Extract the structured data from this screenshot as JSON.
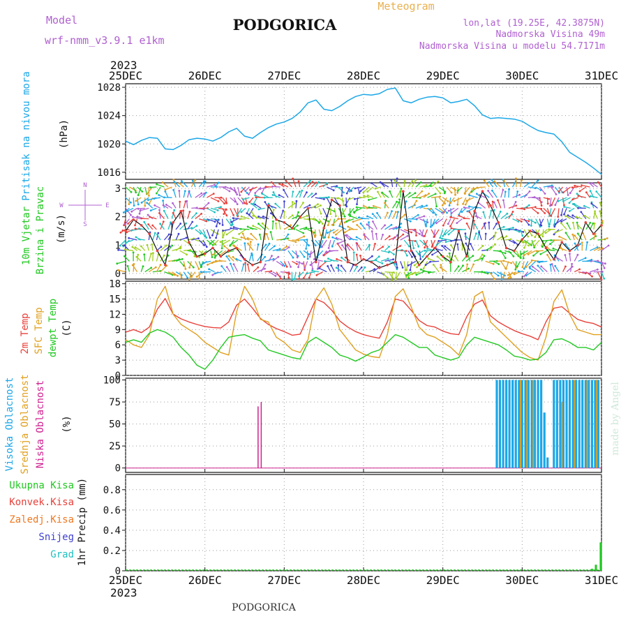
{
  "header": {
    "model_label": "Model",
    "model_name": "wrf-nmm_v3.9.1 e1km",
    "city": "PODGORICA",
    "meteogram": "Meteogram",
    "coords": "lon,lat (19.25E, 42.3875N)",
    "elevation": "Nadmorska Visina 49m",
    "model_elevation": "Nadmorska Visina u modelu 54.7171m",
    "year": "2023",
    "footer_city": "PODGORICA",
    "watermark": "made by Angel"
  },
  "colors": {
    "pressure": "#1ba7e8",
    "temp2m": "#e8403a",
    "sfc_temp": "#e0a020",
    "dewpoint": "#22c822",
    "model_purple": "#b060d0",
    "wind_green": "#22c822",
    "cloud_high": "#1ba7e8",
    "cloud_mid": "#e0a020",
    "cloud_low": "#d02090",
    "total_precip": "#22c822",
    "conv_precip": "#e8403a",
    "frz_precip": "#f07820",
    "snow": "#4040d0",
    "hail": "#20c0c0"
  },
  "chart_data": [
    {
      "type": "line",
      "panel": "pressure",
      "labels": [
        "Pritisak na nivou mora",
        "(hPa)"
      ],
      "x_ticks": [
        "25DEC",
        "26DEC",
        "27DEC",
        "28DEC",
        "29DEC",
        "30DEC",
        "31DEC"
      ],
      "ylim": [
        1015,
        1028.5
      ],
      "y_ticks": [
        1016,
        1020,
        1024,
        1028
      ],
      "x": [
        0,
        0.1,
        0.2,
        0.3,
        0.4,
        0.5,
        0.6,
        0.7,
        0.8,
        0.9,
        1.0,
        1.1,
        1.2,
        1.3,
        1.4,
        1.5,
        1.6,
        1.7,
        1.8,
        1.9,
        2.0,
        2.1,
        2.2,
        2.3,
        2.4,
        2.5,
        2.6,
        2.7,
        2.8,
        2.9,
        3.0,
        3.1,
        3.2,
        3.3,
        3.4,
        3.5,
        3.6,
        3.7,
        3.8,
        3.9,
        4.0,
        4.1,
        4.2,
        4.3,
        4.4,
        4.5,
        4.6,
        4.7,
        4.8,
        4.9,
        5.0,
        5.1,
        5.2,
        5.3,
        5.4,
        5.5,
        5.6,
        5.7,
        5.8,
        5.9,
        6.0
      ],
      "series": [
        {
          "key": "pressure",
          "values": [
            1020.4,
            1019.9,
            1020.5,
            1020.9,
            1020.8,
            1019.3,
            1019.2,
            1019.8,
            1020.6,
            1020.8,
            1020.7,
            1020.4,
            1020.9,
            1021.7,
            1022.2,
            1021.1,
            1020.8,
            1021.6,
            1022.3,
            1022.8,
            1023.1,
            1023.6,
            1024.5,
            1025.8,
            1026.2,
            1024.9,
            1024.7,
            1025.3,
            1026.1,
            1026.7,
            1027.0,
            1026.9,
            1027.1,
            1027.7,
            1027.9,
            1026.1,
            1025.8,
            1026.3,
            1026.6,
            1026.7,
            1026.5,
            1025.8,
            1026.0,
            1026.3,
            1025.4,
            1024.1,
            1023.6,
            1023.7,
            1023.6,
            1023.5,
            1023.2,
            1022.5,
            1021.9,
            1021.6,
            1021.4,
            1020.3,
            1018.8,
            1018.1,
            1017.4,
            1016.6,
            1015.7
          ]
        }
      ]
    },
    {
      "type": "scatter",
      "panel": "wind",
      "labels": [
        "10m Vjetar",
        "Brzina i Pravac",
        "(m/s)"
      ],
      "compass": {
        "n": "N",
        "s": "S",
        "w": "W",
        "e": "E"
      },
      "ylim": [
        -0.2,
        3.2
      ],
      "y_ticks": [
        0,
        1,
        2,
        3
      ],
      "x": [
        0,
        0.1,
        0.2,
        0.3,
        0.4,
        0.5,
        0.6,
        0.7,
        0.8,
        0.9,
        1.0,
        1.1,
        1.2,
        1.3,
        1.4,
        1.5,
        1.6,
        1.7,
        1.8,
        1.9,
        2.0,
        2.1,
        2.2,
        2.3,
        2.4,
        2.5,
        2.6,
        2.7,
        2.8,
        2.9,
        3.0,
        3.1,
        3.2,
        3.3,
        3.4,
        3.5,
        3.6,
        3.7,
        3.8,
        3.9,
        4.0,
        4.1,
        4.2,
        4.3,
        4.4,
        4.5,
        4.6,
        4.7,
        4.8,
        4.9,
        5.0,
        5.1,
        5.2,
        5.3,
        5.4,
        5.5,
        5.6,
        5.7,
        5.8,
        5.9,
        6.0
      ],
      "series": [
        {
          "key": "wind_speed",
          "values": [
            1.5,
            1.9,
            1.7,
            1.4,
            0.8,
            0.3,
            1.8,
            2.2,
            1.1,
            0.6,
            0.7,
            0.9,
            0.6,
            0.8,
            0.9,
            0.5,
            0.3,
            0.4,
            2.4,
            1.9,
            1.8,
            1.6,
            2.0,
            2.3,
            0.4,
            1.6,
            2.6,
            2.4,
            0.4,
            0.3,
            0.5,
            0.4,
            0.2,
            0.3,
            0.4,
            2.9,
            0.8,
            0.3,
            0.6,
            0.9,
            0.6,
            0.4,
            1.5,
            0.6,
            2.2,
            2.9,
            2.4,
            1.8,
            0.9,
            0.8,
            1.2,
            1.5,
            1.4,
            0.9,
            0.5,
            1.1,
            0.8,
            1.0,
            1.8,
            1.4,
            1.7
          ]
        }
      ]
    },
    {
      "type": "line",
      "panel": "temperature",
      "labels": [
        "2m Temp",
        "SFC Temp",
        "dewpt Temp",
        "(C)"
      ],
      "ylim": [
        0,
        18.5
      ],
      "y_ticks": [
        0,
        3,
        6,
        9,
        12,
        15,
        18
      ],
      "x": [
        0,
        0.1,
        0.2,
        0.3,
        0.4,
        0.5,
        0.6,
        0.7,
        0.8,
        0.9,
        1.0,
        1.1,
        1.2,
        1.3,
        1.4,
        1.5,
        1.6,
        1.7,
        1.8,
        1.9,
        2.0,
        2.1,
        2.2,
        2.3,
        2.4,
        2.5,
        2.6,
        2.7,
        2.8,
        2.9,
        3.0,
        3.1,
        3.2,
        3.3,
        3.4,
        3.5,
        3.6,
        3.7,
        3.8,
        3.9,
        4.0,
        4.1,
        4.2,
        4.3,
        4.4,
        4.5,
        4.6,
        4.7,
        4.8,
        4.9,
        5.0,
        5.1,
        5.2,
        5.3,
        5.4,
        5.5,
        5.6,
        5.7,
        5.8,
        5.9,
        6.0
      ],
      "series": [
        {
          "key": "temp2m",
          "name": "2m Temp",
          "values": [
            8.5,
            9.0,
            8.4,
            9.5,
            13.0,
            15.1,
            12.0,
            11.1,
            10.5,
            10.0,
            9.6,
            9.4,
            9.3,
            10.5,
            13.8,
            15.0,
            13.2,
            11.2,
            10.0,
            9.2,
            8.6,
            7.9,
            8.1,
            11.5,
            15.0,
            14.3,
            12.8,
            10.7,
            9.5,
            8.6,
            8.0,
            7.6,
            7.3,
            10.5,
            15.0,
            14.6,
            12.8,
            10.8,
            9.8,
            9.5,
            8.7,
            8.2,
            8.0,
            11.5,
            14.0,
            14.8,
            11.7,
            10.5,
            9.6,
            8.8,
            8.2,
            7.7,
            7.0,
            10.5,
            13.2,
            13.5,
            12.2,
            11.0,
            10.5,
            10.2,
            9.5
          ]
        },
        {
          "key": "sfc_temp",
          "name": "SFC Temp",
          "values": [
            7.0,
            6.0,
            5.5,
            8.0,
            15.0,
            17.5,
            12.0,
            10.0,
            9.0,
            8.0,
            6.5,
            5.5,
            4.5,
            4.0,
            12.5,
            17.5,
            15.0,
            11.0,
            10.5,
            7.5,
            6.5,
            5.0,
            4.5,
            7.0,
            15.0,
            17.2,
            14.0,
            9.0,
            7.0,
            5.0,
            4.2,
            3.7,
            3.5,
            8.0,
            15.5,
            17.0,
            13.5,
            9.5,
            8.0,
            7.5,
            6.5,
            5.5,
            4.0,
            8.0,
            15.5,
            16.5,
            10.5,
            9.0,
            7.5,
            6.0,
            4.5,
            3.5,
            3.0,
            7.5,
            14.5,
            16.8,
            12.0,
            9.0,
            8.5,
            8.0,
            8.0
          ]
        },
        {
          "key": "dewpoint",
          "name": "dewpt Temp",
          "values": [
            6.5,
            7.0,
            6.5,
            8.3,
            9.0,
            8.5,
            7.5,
            5.5,
            4.0,
            2.0,
            1.2,
            3.0,
            5.5,
            7.5,
            7.8,
            8.0,
            7.3,
            6.8,
            5.0,
            4.5,
            4.0,
            3.5,
            3.2,
            6.5,
            7.5,
            6.5,
            5.5,
            4.0,
            3.5,
            2.8,
            3.6,
            4.5,
            5.0,
            6.5,
            8.0,
            7.5,
            6.5,
            5.5,
            5.5,
            4.0,
            3.5,
            3.0,
            3.5,
            6.0,
            7.5,
            7.0,
            6.5,
            6.0,
            5.0,
            3.8,
            3.5,
            3.0,
            3.2,
            4.5,
            7.0,
            7.2,
            6.5,
            5.5,
            5.5,
            5.0,
            6.5
          ]
        }
      ]
    },
    {
      "type": "bar",
      "panel": "clouds",
      "labels": [
        "Visoka Oblacnost",
        "Srednja Oblacnost",
        "Niska Oblacnost",
        "(%)"
      ],
      "ylim": [
        -5,
        102
      ],
      "y_ticks": [
        0,
        25,
        50,
        75,
        100
      ],
      "series": [
        {
          "key": "cloud_low",
          "name": "Niska Oblacnost",
          "x": [
            1.67,
            1.71
          ],
          "values": [
            70,
            75
          ]
        },
        {
          "key": "cloud_high",
          "name": "Visoka Oblacnost",
          "x": [
            4.68,
            4.72,
            4.76,
            4.8,
            4.84,
            4.88,
            4.92,
            4.96,
            5.0,
            5.04,
            5.08,
            5.12,
            5.16,
            5.2,
            5.24,
            5.28,
            5.32,
            5.36,
            5.4,
            5.44,
            5.48,
            5.52,
            5.56,
            5.6,
            5.64,
            5.68,
            5.72,
            5.76,
            5.8,
            5.84,
            5.88,
            5.92,
            5.96
          ],
          "values": [
            100,
            100,
            100,
            100,
            100,
            100,
            100,
            100,
            100,
            100,
            100,
            100,
            100,
            100,
            100,
            63,
            12,
            0,
            100,
            100,
            100,
            100,
            100,
            100,
            100,
            100,
            100,
            100,
            100,
            100,
            100,
            100,
            100
          ]
        },
        {
          "key": "cloud_mid",
          "name": "Srednja Oblacnost",
          "x": [
            4.98,
            5.06,
            5.14,
            5.5,
            5.66,
            5.82,
            5.94
          ],
          "values": [
            100,
            100,
            100,
            75,
            100,
            100,
            100
          ]
        }
      ]
    },
    {
      "type": "bar",
      "panel": "precipitation",
      "labels": [
        "1hr Precip (mm)"
      ],
      "legend": [
        "Ukupna Kisa",
        "Konvek.Kisa",
        "Zaledj.Kisa",
        "Snijeg",
        "Grad"
      ],
      "ylim": [
        0,
        0.95
      ],
      "y_ticks": [
        "0",
        "0.2",
        "0.4",
        "0.6",
        "0.8"
      ],
      "series": [
        {
          "key": "total_precip",
          "name": "Ukupna Kisa",
          "x": [
            5.88,
            5.93,
            5.99
          ],
          "values": [
            0.02,
            0.06,
            0.28
          ]
        }
      ]
    }
  ]
}
